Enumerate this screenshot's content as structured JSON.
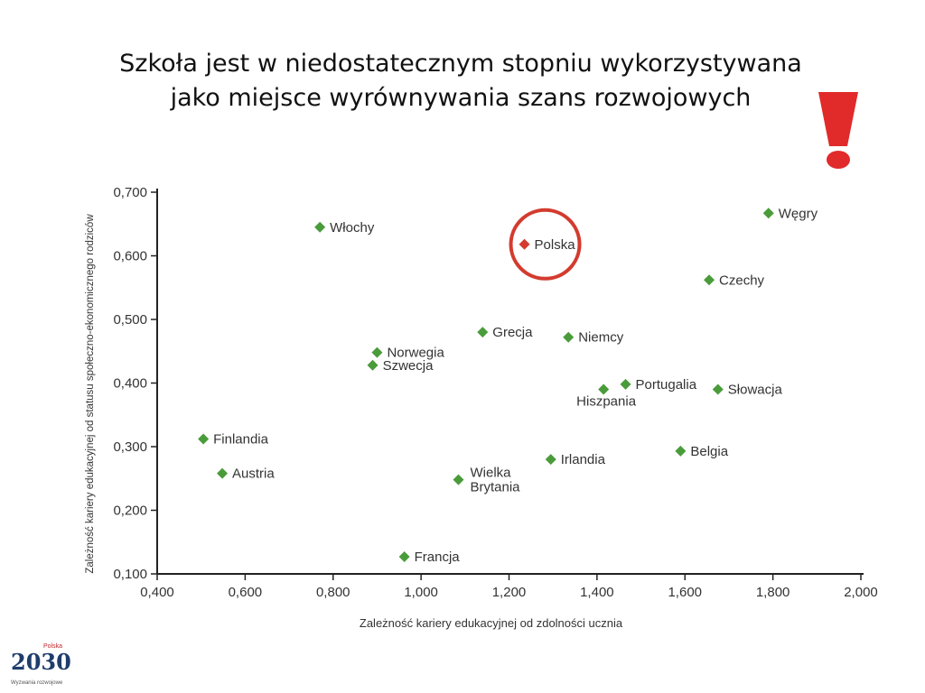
{
  "title": {
    "line1": "Szkoła jest w niedostatecznym stopniu wykorzystywana",
    "line2": "jako miejsce wyrównywania szans rozwojowych"
  },
  "logo": {
    "small": "Polska",
    "year": "2030",
    "sub": "Wyzwania rozwojowe"
  },
  "colors": {
    "point": "#4a9c3a",
    "highlight": "#d33b2e",
    "warning": "#e12a2a",
    "axis": "#222222"
  },
  "chart_data": {
    "type": "scatter",
    "xlabel": "Zależność kariery edukacyjnej od zdolności ucznia",
    "ylabel": "Zależność kariery edukacyjnej od statusu społeczno-ekonomicznego rodziców",
    "xlim": [
      0.4,
      2.0
    ],
    "ylim": [
      0.1,
      0.7
    ],
    "x_ticks": [
      "0,400",
      "0,600",
      "0,800",
      "1,000",
      "1,200",
      "1,400",
      "1,600",
      "1,800",
      "2,000"
    ],
    "y_ticks": [
      "0,100",
      "0,200",
      "0,300",
      "0,400",
      "0,500",
      "0,600",
      "0,700"
    ],
    "grid": false,
    "points": [
      {
        "label": "Włochy",
        "x": 0.77,
        "y": 0.645
      },
      {
        "label": "Polska",
        "x": 1.235,
        "y": 0.618,
        "highlight": true
      },
      {
        "label": "Węgry",
        "x": 1.79,
        "y": 0.667
      },
      {
        "label": "Czechy",
        "x": 1.655,
        "y": 0.562
      },
      {
        "label": "Grecja",
        "x": 1.14,
        "y": 0.48
      },
      {
        "label": "Niemcy",
        "x": 1.335,
        "y": 0.472
      },
      {
        "label": "Norwegia",
        "x": 0.9,
        "y": 0.448
      },
      {
        "label": "Szwecja",
        "x": 0.89,
        "y": 0.428
      },
      {
        "label": "Portugalia",
        "x": 1.465,
        "y": 0.398
      },
      {
        "label": "Hiszpania",
        "x": 1.415,
        "y": 0.39
      },
      {
        "label": "Słowacja",
        "x": 1.675,
        "y": 0.39
      },
      {
        "label": "Finlandia",
        "x": 0.505,
        "y": 0.312
      },
      {
        "label": "Belgia",
        "x": 1.59,
        "y": 0.293
      },
      {
        "label": "Irlandia",
        "x": 1.295,
        "y": 0.28
      },
      {
        "label": "Austria",
        "x": 0.548,
        "y": 0.258
      },
      {
        "label": "Wielka Brytania",
        "x": 1.085,
        "y": 0.248
      },
      {
        "label": "Francja",
        "x": 0.962,
        "y": 0.127
      }
    ]
  }
}
